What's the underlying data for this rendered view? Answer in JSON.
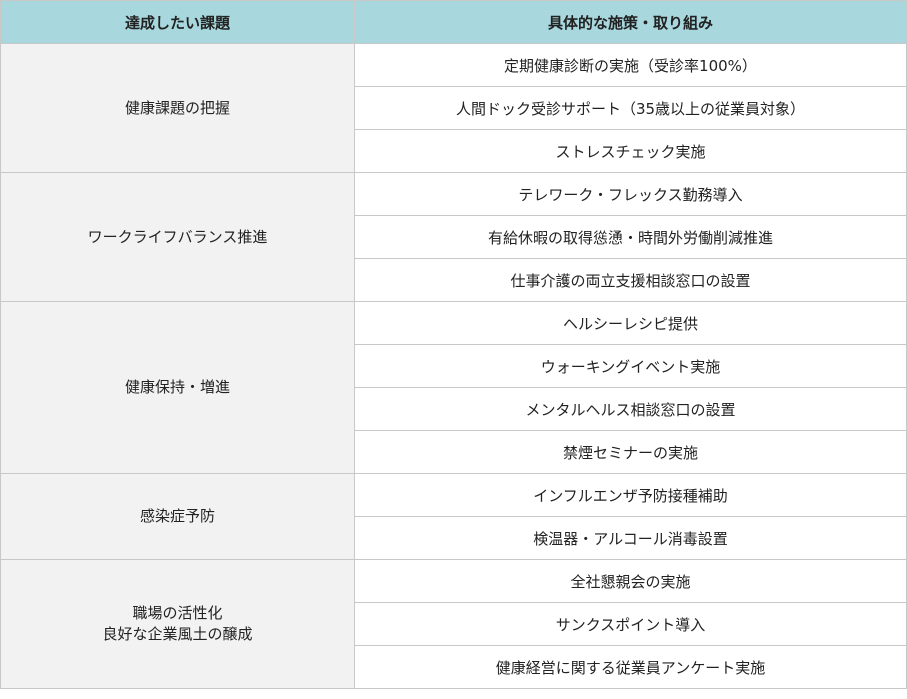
{
  "header": {
    "goal": "達成したい課題",
    "measures": "具体的な施策・取り組み"
  },
  "colors": {
    "header_bg": "#a8d8de",
    "goal_bg": "#f2f2f2",
    "border": "#c8c8c8"
  },
  "groups": [
    {
      "goal": "健康課題の把握",
      "measures": [
        "定期健康診断の実施（受診率100%）",
        "人間ドック受診サポート（35歳以上の従業員対象）",
        "ストレスチェック実施"
      ]
    },
    {
      "goal": "ワークライフバランス推進",
      "measures": [
        "テレワーク・フレックス勤務導入",
        "有給休暇の取得慫慂・時間外労働削減推進",
        "仕事介護の両立支援相談窓口の設置"
      ]
    },
    {
      "goal": "健康保持・増進",
      "measures": [
        "ヘルシーレシピ提供",
        "ウォーキングイベント実施",
        "メンタルヘルス相談窓口の設置",
        "禁煙セミナーの実施"
      ]
    },
    {
      "goal": "感染症予防",
      "measures": [
        "インフルエンザ予防接種補助",
        "検温器・アルコール消毒設置"
      ]
    },
    {
      "goal": "職場の活性化\n良好な企業風土の醸成",
      "measures": [
        "全社懇親会の実施",
        "サンクスポイント導入",
        "健康経営に関する従業員アンケート実施"
      ]
    }
  ]
}
